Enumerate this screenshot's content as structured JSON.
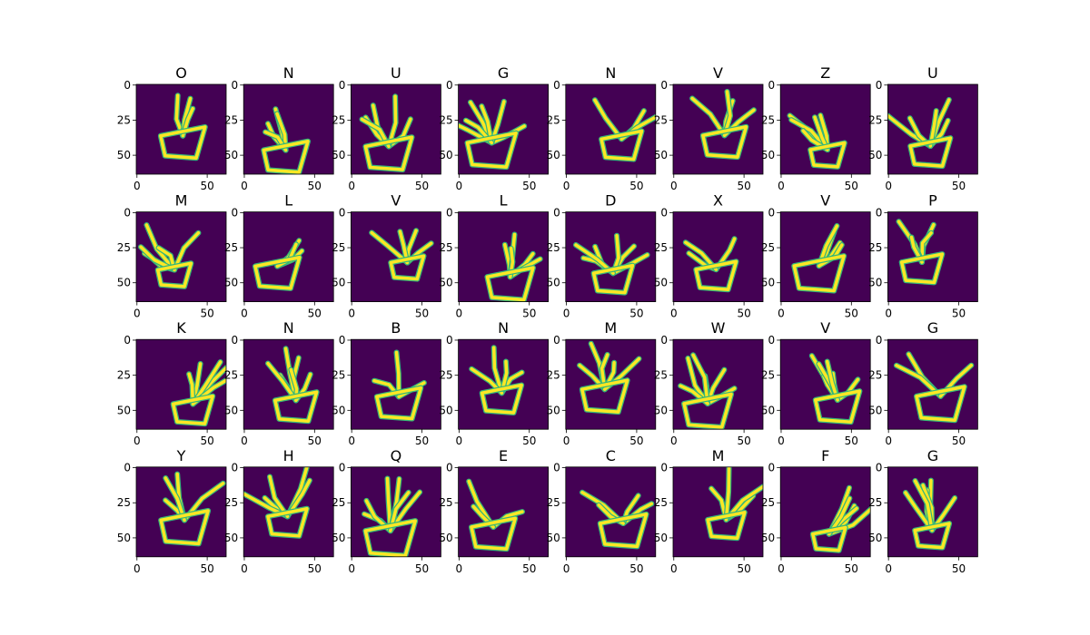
{
  "chart_data": {
    "type": "image-grid",
    "rows": 4,
    "cols": 8,
    "image_shape": [
      64,
      64
    ],
    "colormap": "viridis",
    "background_color": "#440154",
    "foreground_color": "#fde725",
    "edge_color": "#35b779",
    "xticks": [
      "0",
      "50"
    ],
    "yticks": [
      "0",
      "25",
      "50"
    ],
    "titles": [
      "O",
      "N",
      "U",
      "G",
      "N",
      "V",
      "Z",
      "U",
      "M",
      "L",
      "V",
      "L",
      "D",
      "X",
      "V",
      "P",
      "K",
      "N",
      "B",
      "N",
      "M",
      "W",
      "V",
      "G",
      "Y",
      "H",
      "Q",
      "E",
      "C",
      "M",
      "F",
      "G"
    ]
  }
}
